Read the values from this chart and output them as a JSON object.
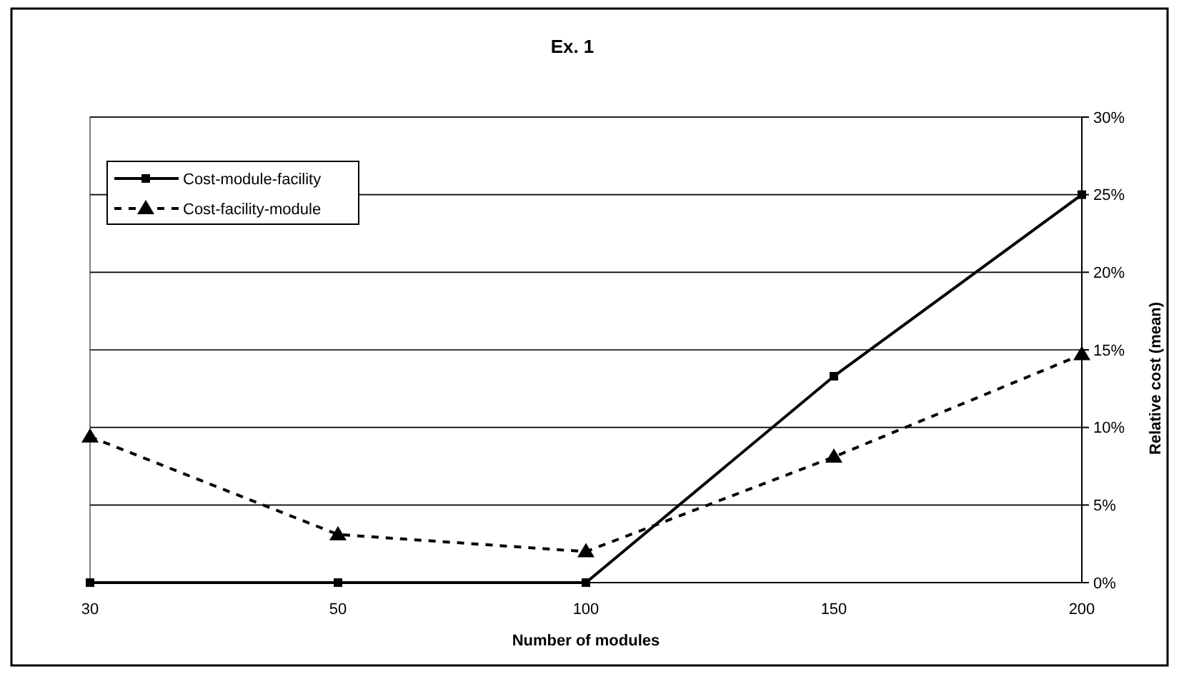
{
  "chart_data": {
    "type": "line",
    "title": "Ex. 1",
    "xlabel": "Number of modules",
    "ylabel": "Relative cost (mean)",
    "categories": [
      "30",
      "50",
      "100",
      "150",
      "200"
    ],
    "series": [
      {
        "name": "Cost-module-facility",
        "color": "#000000",
        "values": [
          0,
          0,
          0,
          13.3,
          25
        ],
        "marker": "square",
        "line_style": "solid"
      },
      {
        "name": "Cost-facility-module",
        "color": "#000000",
        "values": [
          9.4,
          3.1,
          2.0,
          8.1,
          14.7
        ],
        "marker": "triangle",
        "line_style": "dashed"
      }
    ],
    "ylim": [
      0,
      30
    ],
    "yticks": [
      {
        "value": 0,
        "label": "0%"
      },
      {
        "value": 5,
        "label": "5%"
      },
      {
        "value": 10,
        "label": "10%"
      },
      {
        "value": 15,
        "label": "15%"
      },
      {
        "value": 20,
        "label": "20%"
      },
      {
        "value": 25,
        "label": "25%"
      },
      {
        "value": 30,
        "label": "30%"
      }
    ],
    "grid": "y",
    "legend": "top left"
  }
}
